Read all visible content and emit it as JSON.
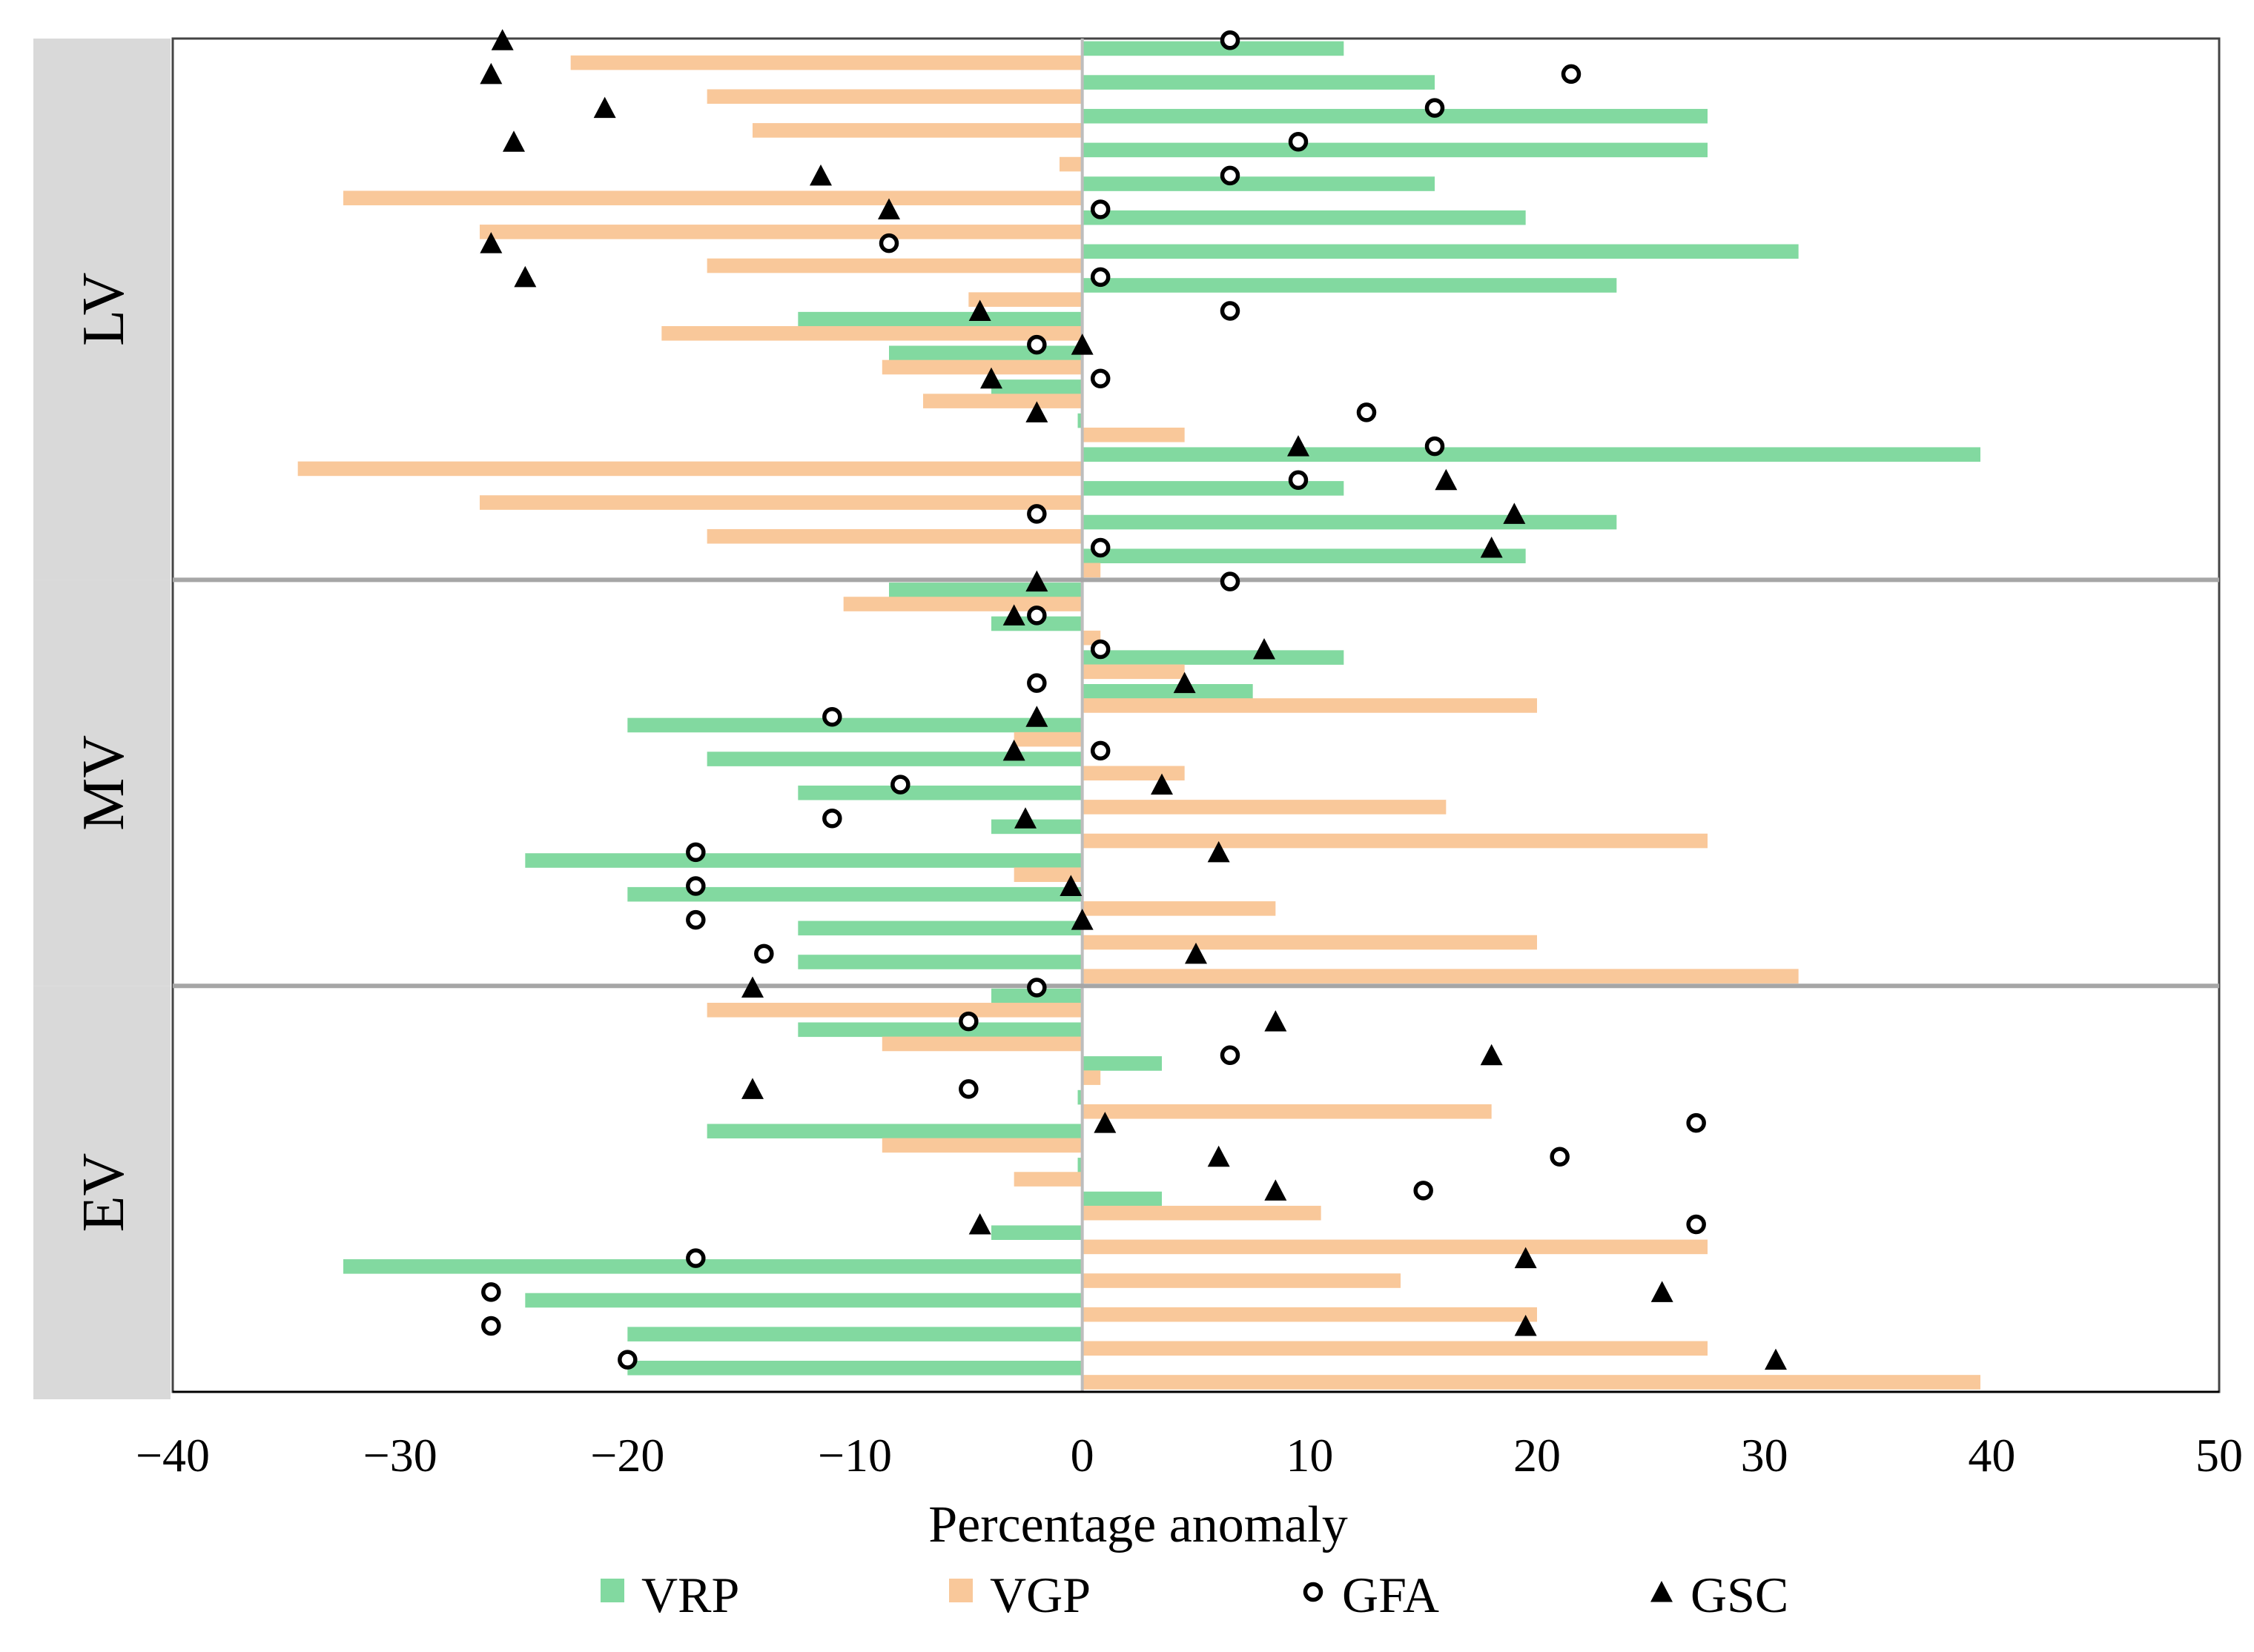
{
  "chart_data": {
    "type": "bar",
    "orientation": "horizontal",
    "xlabel": "Percentage anomaly",
    "xlim": [
      -40,
      50
    ],
    "xticks": [
      -40,
      -30,
      -20,
      -10,
      0,
      10,
      20,
      30,
      40,
      50
    ],
    "xtick_labels": [
      "−40",
      "−30",
      "−20",
      "−10",
      "0",
      "10",
      "20",
      "30",
      "40",
      "50"
    ],
    "legend_position": "bottom",
    "colors": {
      "VRP": "#82d9a0",
      "VGP": "#f9c89a",
      "marker": "#000000",
      "panel": "#d9d9d9",
      "separator": "#a6a6a6"
    },
    "series": [
      {
        "name": "VRP",
        "kind": "bar",
        "color": "#82d9a0"
      },
      {
        "name": "VGP",
        "kind": "bar",
        "color": "#f9c89a"
      },
      {
        "name": "GFA",
        "kind": "marker",
        "marker": "open-circle"
      },
      {
        "name": "GSC",
        "kind": "marker",
        "marker": "filled-triangle"
      }
    ],
    "groups": [
      {
        "name": "LV",
        "rows": [
          {
            "VRP": 11.5,
            "VGP": -22.5,
            "GFA": 6.5,
            "GSC": -25.5
          },
          {
            "VRP": 15.5,
            "VGP": -16.5,
            "GFA": 21.5,
            "GSC": -26.0
          },
          {
            "VRP": 27.5,
            "VGP": -14.5,
            "GFA": 15.5,
            "GSC": -21.0
          },
          {
            "VRP": 27.5,
            "VGP": -1.0,
            "GFA": 9.5,
            "GSC": -25.0
          },
          {
            "VRP": 15.5,
            "VGP": -32.5,
            "GFA": 6.5,
            "GSC": -11.5
          },
          {
            "VRP": 19.5,
            "VGP": -26.5,
            "GFA": 0.8,
            "GSC": -8.5
          },
          {
            "VRP": 31.5,
            "VGP": -16.5,
            "GFA": -8.5,
            "GSC": -26.0
          },
          {
            "VRP": 23.5,
            "VGP": -5.0,
            "GFA": 0.8,
            "GSC": -24.5
          },
          {
            "VRP": -12.5,
            "VGP": -18.5,
            "GFA": 6.5,
            "GSC": -4.5
          },
          {
            "VRP": -8.5,
            "VGP": -8.8,
            "GFA": -2.0,
            "GSC": 0.0
          },
          {
            "VRP": -4.0,
            "VGP": -7.0,
            "GFA": 0.8,
            "GSC": -4.0
          },
          {
            "VRP": -0.2,
            "VGP": 4.5,
            "GFA": 12.5,
            "GSC": -2.0
          },
          {
            "VRP": 39.5,
            "VGP": -34.5,
            "GFA": 15.5,
            "GSC": 9.5
          },
          {
            "VRP": 11.5,
            "VGP": -26.5,
            "GFA": 9.5,
            "GSC": 16.0
          },
          {
            "VRP": 23.5,
            "VGP": -16.5,
            "GFA": -2.0,
            "GSC": 19.0
          },
          {
            "VRP": 19.5,
            "VGP": 0.8,
            "GFA": 0.8,
            "GSC": 18.0
          }
        ]
      },
      {
        "name": "MV",
        "rows": [
          {
            "VRP": -8.5,
            "VGP": -10.5,
            "GFA": 6.5,
            "GSC": -2.0
          },
          {
            "VRP": -4.0,
            "VGP": 0.8,
            "GFA": -2.0,
            "GSC": -3.0
          },
          {
            "VRP": 11.5,
            "VGP": 4.5,
            "GFA": 0.8,
            "GSC": 8.0
          },
          {
            "VRP": 7.5,
            "VGP": 20.0,
            "GFA": -2.0,
            "GSC": 4.5
          },
          {
            "VRP": -20.0,
            "VGP": -3.0,
            "GFA": -11.0,
            "GSC": -2.0
          },
          {
            "VRP": -16.5,
            "VGP": 4.5,
            "GFA": 0.8,
            "GSC": -3.0
          },
          {
            "VRP": -12.5,
            "VGP": 16.0,
            "GFA": -8.0,
            "GSC": 3.5
          },
          {
            "VRP": -4.0,
            "VGP": 27.5,
            "GFA": -11.0,
            "GSC": -2.5
          },
          {
            "VRP": -24.5,
            "VGP": -3.0,
            "GFA": -17.0,
            "GSC": 6.0
          },
          {
            "VRP": -20.0,
            "VGP": 8.5,
            "GFA": -17.0,
            "GSC": -0.5
          },
          {
            "VRP": -12.5,
            "VGP": 20.0,
            "GFA": -17.0,
            "GSC": 0.0
          },
          {
            "VRP": -12.5,
            "VGP": 31.5,
            "GFA": -14.0,
            "GSC": 5.0
          }
        ]
      },
      {
        "name": "EV",
        "rows": [
          {
            "VRP": -4.0,
            "VGP": -16.5,
            "GFA": -2.0,
            "GSC": -14.5
          },
          {
            "VRP": -12.5,
            "VGP": -8.8,
            "GFA": -5.0,
            "GSC": 8.5
          },
          {
            "VRP": 3.5,
            "VGP": 0.8,
            "GFA": 6.5,
            "GSC": 18.0
          },
          {
            "VRP": -0.2,
            "VGP": 18.0,
            "GFA": -5.0,
            "GSC": -14.5
          },
          {
            "VRP": -16.5,
            "VGP": -8.8,
            "GFA": 27.0,
            "GSC": 1.0
          },
          {
            "VRP": -0.2,
            "VGP": -3.0,
            "GFA": 21.0,
            "GSC": 6.0
          },
          {
            "VRP": 3.5,
            "VGP": 10.5,
            "GFA": 15.0,
            "GSC": 8.5
          },
          {
            "VRP": -4.0,
            "VGP": 27.5,
            "GFA": 27.0,
            "GSC": -4.5
          },
          {
            "VRP": -32.5,
            "VGP": 14.0,
            "GFA": -17.0,
            "GSC": 19.5
          },
          {
            "VRP": -24.5,
            "VGP": 20.0,
            "GFA": -26.0,
            "GSC": 25.5
          },
          {
            "VRP": -20.0,
            "VGP": 27.5,
            "GFA": -26.0,
            "GSC": 19.5
          },
          {
            "VRP": -20.0,
            "VGP": 39.5,
            "GFA": -20.0,
            "GSC": 30.5
          }
        ]
      }
    ]
  }
}
